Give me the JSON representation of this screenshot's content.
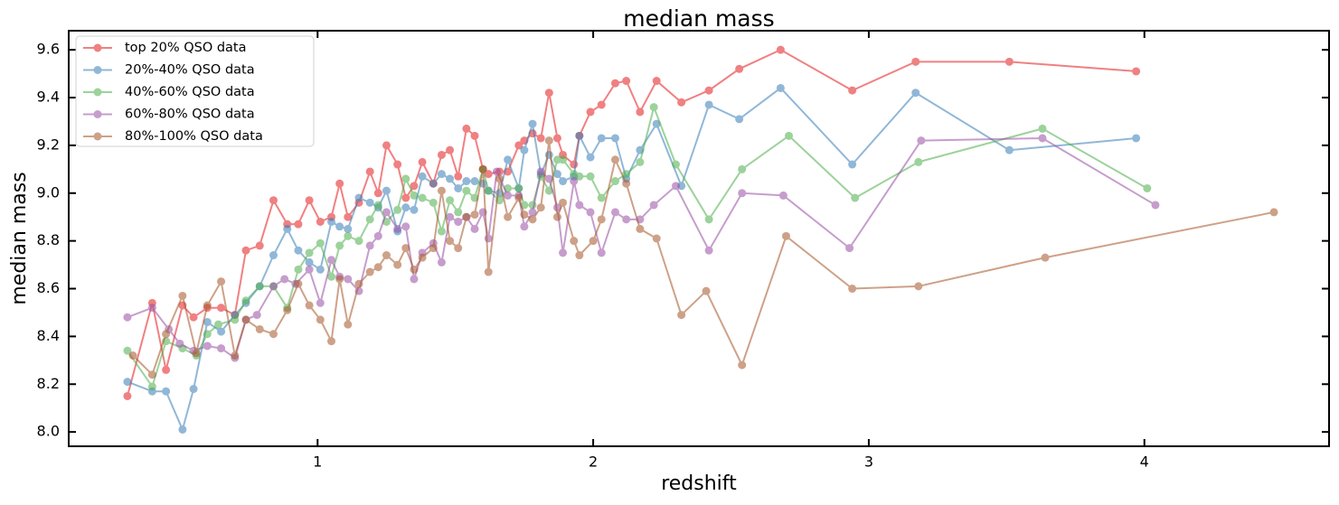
{
  "chart_data": {
    "type": "line",
    "title": "median mass",
    "x_label": "redshift",
    "y_label": "median mass",
    "xlim": [
      0.097,
      4.67
    ],
    "ylim": [
      7.94,
      9.68
    ],
    "xticks": [
      1,
      2,
      3,
      4
    ],
    "yticks": [
      {
        "value": 8.0,
        "label": "8.0"
      },
      8.2,
      8.4,
      8.6,
      8.8,
      {
        "value": 9.0,
        "label": "9.0"
      },
      9.2,
      9.4,
      9.6
    ],
    "legend": "upper left",
    "grid": false,
    "series": [
      {
        "name": "top 20% QSO data",
        "color": "#e41a1c",
        "x": [
          0.31,
          0.4,
          0.45,
          0.51,
          0.55,
          0.6,
          0.65,
          0.7,
          0.74,
          0.79,
          0.84,
          0.89,
          0.93,
          0.97,
          1.01,
          1.05,
          1.08,
          1.11,
          1.15,
          1.19,
          1.22,
          1.25,
          1.29,
          1.32,
          1.35,
          1.38,
          1.42,
          1.45,
          1.48,
          1.51,
          1.54,
          1.57,
          1.6,
          1.62,
          1.66,
          1.69,
          1.73,
          1.75,
          1.78,
          1.81,
          1.84,
          1.87,
          1.89,
          1.93,
          1.95,
          1.99,
          2.03,
          2.08,
          2.12,
          2.17,
          2.23,
          2.32,
          2.42,
          2.53,
          2.68,
          2.94,
          3.17,
          3.51,
          3.97
        ],
        "values": [
          8.15,
          8.54,
          8.26,
          8.53,
          8.48,
          8.52,
          8.52,
          8.49,
          8.76,
          8.78,
          8.97,
          8.87,
          8.87,
          8.97,
          8.88,
          8.9,
          9.04,
          8.9,
          8.96,
          9.09,
          9.0,
          9.2,
          9.12,
          8.98,
          9.03,
          9.13,
          9.04,
          9.16,
          9.18,
          9.07,
          9.27,
          9.24,
          9.1,
          9.08,
          9.09,
          9.09,
          9.2,
          9.22,
          9.25,
          9.23,
          9.42,
          9.23,
          9.16,
          9.12,
          9.24,
          9.34,
          9.37,
          9.46,
          9.47,
          9.34,
          9.47,
          9.38,
          9.43,
          9.52,
          9.6,
          9.43,
          9.55,
          9.55,
          9.51
        ]
      },
      {
        "name": "20%-40% QSO data",
        "color": "#377eb8",
        "x": [
          0.31,
          0.4,
          0.45,
          0.51,
          0.55,
          0.6,
          0.65,
          0.7,
          0.74,
          0.79,
          0.84,
          0.89,
          0.93,
          0.97,
          1.01,
          1.05,
          1.08,
          1.11,
          1.15,
          1.19,
          1.22,
          1.25,
          1.29,
          1.32,
          1.35,
          1.38,
          1.42,
          1.45,
          1.48,
          1.51,
          1.54,
          1.57,
          1.6,
          1.62,
          1.66,
          1.69,
          1.73,
          1.75,
          1.78,
          1.81,
          1.84,
          1.87,
          1.89,
          1.93,
          1.95,
          1.99,
          2.03,
          2.08,
          2.12,
          2.17,
          2.23,
          2.32,
          2.42,
          2.53,
          2.68,
          2.94,
          3.17,
          3.51,
          3.97
        ],
        "values": [
          8.21,
          8.17,
          8.17,
          8.01,
          8.18,
          8.46,
          8.42,
          8.49,
          8.54,
          8.61,
          8.74,
          8.85,
          8.76,
          8.71,
          8.68,
          8.88,
          8.86,
          8.85,
          8.98,
          8.96,
          8.94,
          9.01,
          8.84,
          8.94,
          8.93,
          9.07,
          9.04,
          9.08,
          9.06,
          9.02,
          9.05,
          9.05,
          9.04,
          9.01,
          9.0,
          9.14,
          9.02,
          9.18,
          9.29,
          9.08,
          9.16,
          9.08,
          9.05,
          9.07,
          9.24,
          9.15,
          9.23,
          9.23,
          9.06,
          9.18,
          9.29,
          9.03,
          9.37,
          9.31,
          9.44,
          9.12,
          9.42,
          9.18,
          9.23
        ]
      },
      {
        "name": "40%-60% QSO data",
        "color": "#4daf4a",
        "x": [
          0.31,
          0.4,
          0.45,
          0.51,
          0.56,
          0.6,
          0.64,
          0.7,
          0.74,
          0.79,
          0.84,
          0.89,
          0.93,
          0.97,
          1.01,
          1.05,
          1.08,
          1.11,
          1.15,
          1.19,
          1.22,
          1.25,
          1.29,
          1.32,
          1.35,
          1.38,
          1.42,
          1.45,
          1.48,
          1.51,
          1.54,
          1.57,
          1.6,
          1.62,
          1.66,
          1.69,
          1.73,
          1.75,
          1.78,
          1.81,
          1.84,
          1.87,
          1.89,
          1.93,
          1.95,
          1.99,
          2.03,
          2.08,
          2.12,
          2.17,
          2.22,
          2.3,
          2.42,
          2.54,
          2.71,
          2.95,
          3.18,
          3.63,
          4.01
        ],
        "values": [
          8.34,
          8.19,
          8.38,
          8.35,
          8.32,
          8.41,
          8.45,
          8.47,
          8.55,
          8.61,
          8.61,
          8.52,
          8.68,
          8.75,
          8.79,
          8.65,
          8.78,
          8.82,
          8.8,
          8.89,
          8.95,
          8.88,
          8.93,
          9.06,
          8.99,
          8.98,
          8.96,
          8.84,
          8.97,
          8.92,
          9.01,
          8.98,
          9.1,
          9.01,
          8.97,
          9.02,
          9.02,
          8.95,
          8.95,
          9.07,
          9.01,
          9.14,
          9.14,
          9.08,
          9.07,
          9.07,
          8.98,
          9.05,
          9.08,
          9.13,
          9.36,
          9.12,
          8.89,
          9.1,
          9.24,
          8.98,
          9.13,
          9.27,
          9.02
        ]
      },
      {
        "name": "60%-80% QSO data",
        "color": "#984ea3",
        "x": [
          0.31,
          0.4,
          0.46,
          0.5,
          0.55,
          0.6,
          0.65,
          0.7,
          0.74,
          0.78,
          0.84,
          0.88,
          0.92,
          0.97,
          1.01,
          1.05,
          1.08,
          1.11,
          1.15,
          1.19,
          1.22,
          1.25,
          1.29,
          1.32,
          1.35,
          1.38,
          1.42,
          1.45,
          1.48,
          1.51,
          1.54,
          1.57,
          1.6,
          1.62,
          1.65,
          1.69,
          1.73,
          1.75,
          1.78,
          1.81,
          1.84,
          1.87,
          1.89,
          1.93,
          1.95,
          1.99,
          2.03,
          2.08,
          2.12,
          2.17,
          2.22,
          2.3,
          2.42,
          2.54,
          2.69,
          2.93,
          3.19,
          3.63,
          4.04
        ],
        "values": [
          8.48,
          8.52,
          8.43,
          8.37,
          8.34,
          8.36,
          8.35,
          8.31,
          8.47,
          8.49,
          8.61,
          8.64,
          8.62,
          8.68,
          8.54,
          8.72,
          8.65,
          8.64,
          8.59,
          8.78,
          8.82,
          8.92,
          8.85,
          8.86,
          8.64,
          8.75,
          8.79,
          8.71,
          8.9,
          8.88,
          8.9,
          8.85,
          8.92,
          8.81,
          9.09,
          8.99,
          8.99,
          8.86,
          8.92,
          9.09,
          9.06,
          8.94,
          8.75,
          9.05,
          8.95,
          8.92,
          8.75,
          8.92,
          8.89,
          8.89,
          8.95,
          9.03,
          8.76,
          9.0,
          8.99,
          8.77,
          9.22,
          9.23,
          8.95
        ]
      },
      {
        "name": "80%-100% QSO data",
        "color": "#a65628",
        "x": [
          0.33,
          0.4,
          0.45,
          0.51,
          0.56,
          0.6,
          0.65,
          0.7,
          0.74,
          0.79,
          0.84,
          0.89,
          0.93,
          0.97,
          1.01,
          1.05,
          1.08,
          1.11,
          1.15,
          1.19,
          1.22,
          1.25,
          1.29,
          1.32,
          1.35,
          1.38,
          1.42,
          1.45,
          1.48,
          1.51,
          1.54,
          1.57,
          1.6,
          1.62,
          1.66,
          1.69,
          1.73,
          1.75,
          1.78,
          1.81,
          1.84,
          1.87,
          1.89,
          1.93,
          1.95,
          2.0,
          2.03,
          2.08,
          2.12,
          2.17,
          2.23,
          2.32,
          2.41,
          2.54,
          2.7,
          2.94,
          3.18,
          3.64,
          4.47
        ],
        "values": [
          8.32,
          8.24,
          8.41,
          8.57,
          8.33,
          8.53,
          8.63,
          8.32,
          8.47,
          8.43,
          8.41,
          8.51,
          8.62,
          8.53,
          8.47,
          8.38,
          8.64,
          8.45,
          8.62,
          8.67,
          8.69,
          8.74,
          8.7,
          8.77,
          8.68,
          8.73,
          8.77,
          9.01,
          8.8,
          8.77,
          8.9,
          8.91,
          9.1,
          8.67,
          9.06,
          8.9,
          8.98,
          8.91,
          8.89,
          8.94,
          9.22,
          8.9,
          8.96,
          8.8,
          8.74,
          8.8,
          8.89,
          9.14,
          9.04,
          8.85,
          8.81,
          8.49,
          8.59,
          8.28,
          8.82,
          8.6,
          8.61,
          8.73,
          8.92
        ]
      }
    ]
  }
}
